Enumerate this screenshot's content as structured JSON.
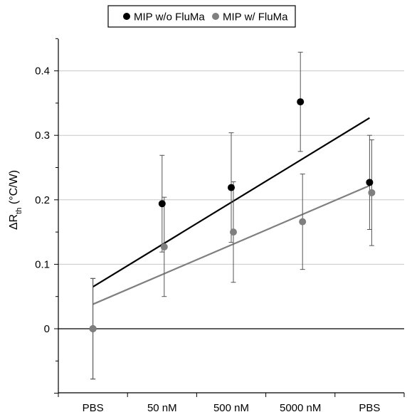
{
  "chart_data": {
    "type": "scatter",
    "categories": [
      "PBS",
      "50 nM",
      "500 nM",
      "5000 nM",
      "PBS"
    ],
    "ylabel": {
      "main": "ΔR",
      "sub": "th",
      "unit": " (°C/W)"
    },
    "ylim": [
      -0.1,
      0.45
    ],
    "yticks": [
      0,
      0.1,
      0.2,
      0.3,
      0.4
    ],
    "ytick_labels": [
      "0",
      "0.1",
      "0.2",
      "0.3",
      "0.4"
    ],
    "grid": "horizontal",
    "legend_position": "top-center",
    "series": [
      {
        "name": "MIP w/o FluMa",
        "color": "#000000",
        "values": [
          0.0,
          0.194,
          0.219,
          0.352,
          0.227
        ],
        "errors": [
          0.078,
          0.075,
          0.085,
          0.077,
          0.073
        ],
        "trend": [
          0.065,
          0.327
        ]
      },
      {
        "name": "MIP w/ FluMa",
        "color": "#7f7f7f",
        "values": [
          0.0,
          0.127,
          0.15,
          0.166,
          0.211
        ],
        "errors": [
          0.078,
          0.077,
          0.078,
          0.074,
          0.082
        ],
        "trend": [
          0.038,
          0.222
        ]
      }
    ]
  }
}
